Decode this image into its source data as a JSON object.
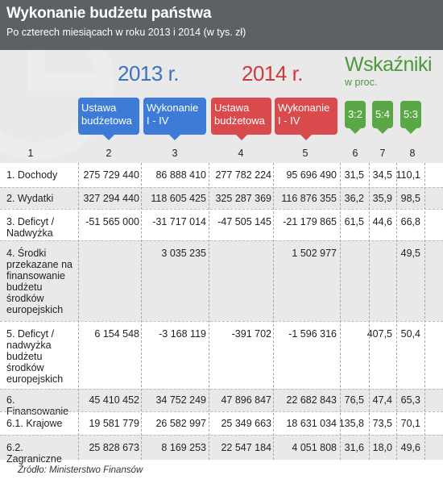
{
  "title": "Wykonanie budżetu państwa",
  "subtitle": "Po czterech miesiącach w roku 2013 i 2014 (w tys. zł)",
  "groups": {
    "y2013": "2013 r.",
    "y2014": "2014 r.",
    "indicators": "Wskaźniki",
    "indicators_sub": "w proc."
  },
  "column_headers": {
    "c2": [
      "Ustawa",
      "budżetowa"
    ],
    "c3": [
      "Wykonanie",
      "I - IV"
    ],
    "c4": [
      "Ustawa",
      "budżetowa"
    ],
    "c5": [
      "Wykonanie",
      "I - IV"
    ],
    "c6": "3:2",
    "c7": "5:4",
    "c8": "5:3"
  },
  "column_numbers": [
    "1",
    "2",
    "3",
    "4",
    "5",
    "6",
    "7",
    "8"
  ],
  "source": "Źródło: Ministerstwo Finansów",
  "colors": {
    "header_bg": "#5d6165",
    "y2013": "#3e7bd6",
    "y2014": "#d84a4b",
    "indicators": "#5aa845"
  },
  "chart_data": {
    "type": "table",
    "columns": [
      "1",
      "2",
      "3",
      "4",
      "5",
      "6",
      "7",
      "8"
    ],
    "rows": [
      [
        "1. Dochody",
        "275 729 440",
        "86 888 410",
        "277 782 224",
        "95 696 490",
        "31,5",
        "34,5",
        "110,1"
      ],
      [
        "2. Wydatki",
        "327 294 440",
        "118 605 425",
        "325 287 369",
        "116 876 355",
        "36,2",
        "35,9",
        "98,5"
      ],
      [
        "3. Deficyt / Nadwyżka",
        "-51 565 000",
        "-31 717 014",
        "-47 505 145",
        "-21 179 865",
        "61,5",
        "44,6",
        "66,8"
      ],
      [
        "4. Środki przekazane na finansowanie budżetu środków europejskich",
        "",
        "3 035 235",
        "",
        "1 502 977",
        "",
        "",
        "49,5"
      ],
      [
        "5. Deficyt / nadwyżka budżetu środków europejskich",
        "6 154 548",
        "-3 168 119",
        "-391 702",
        "-1 596 316",
        "",
        "407,5",
        "50,4"
      ],
      [
        "6. Finansowanie",
        "45 410 452",
        "34 752 249",
        "47 896 847",
        "22 682 843",
        "76,5",
        "47,4",
        "65,3"
      ],
      [
        "6.1. Krajowe",
        "19 581 779",
        "26 582 997",
        "25 349 663",
        "18 631 034",
        "135,8",
        "73,5",
        "70,1"
      ],
      [
        "6.2. Zagraniczne",
        "25 828 673",
        "8 169 253",
        "22 547 184",
        "4 051 808",
        "31,6",
        "18,0",
        "49,6"
      ]
    ]
  }
}
